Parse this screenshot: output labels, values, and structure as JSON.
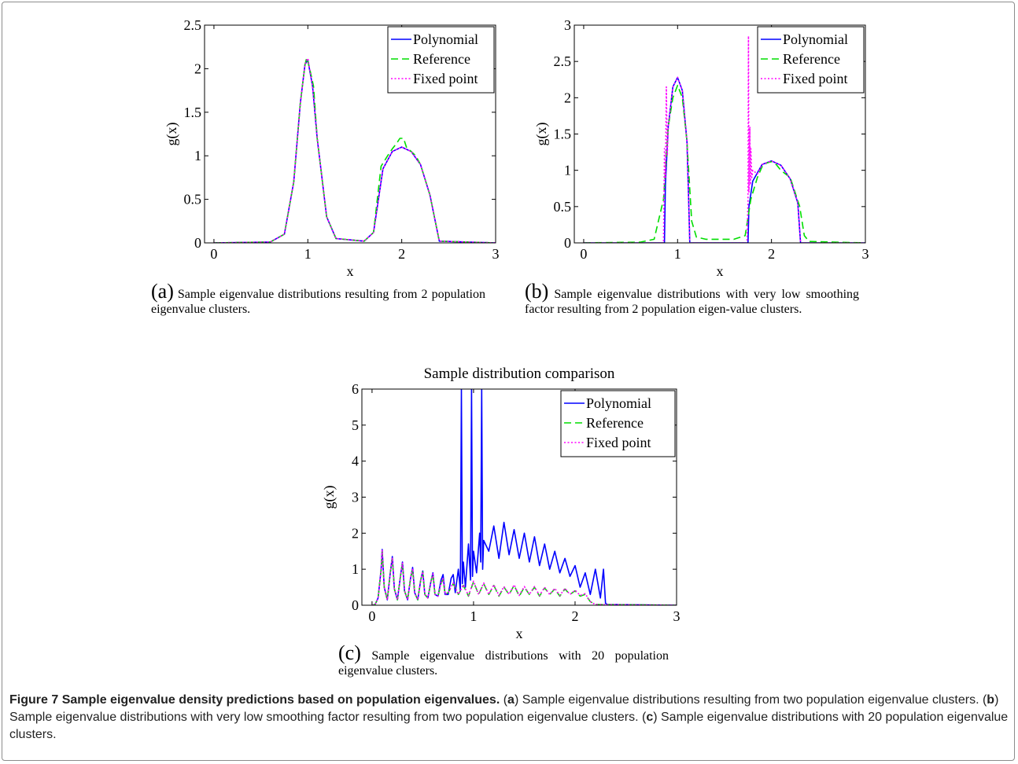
{
  "colors": {
    "polynomial": "#0000ff",
    "reference": "#00dd00",
    "fixed_point": "#ff00ff"
  },
  "caption": {
    "figure_label": "Figure 7",
    "title": "Sample eigenvalue density predictions based on population eigenvalues.",
    "a_label": "a",
    "a_text": "Sample eigenvalue distributions resulting from two population eigenvalue clusters.",
    "b_label": "b",
    "b_text": "Sample eigenvalue distributions with very low smoothing factor resulting from two population eigenvalue clusters.",
    "c_label": "c",
    "c_text": "Sample eigenvalue distributions with 20 population eigenvalue clusters."
  },
  "subcaptions": {
    "a": {
      "label": "(a)",
      "text": "Sample eigenvalue distributions resulting from 2 population eigenvalue clusters."
    },
    "b": {
      "label": "(b)",
      "text": "Sample eigenvalue distributions with very low smoothing factor resulting from 2 population eigen-value clusters."
    },
    "c": {
      "label": "(c)",
      "text": "Sample eigenvalue distributions with 20 population eigenvalue clusters."
    }
  },
  "chart_data": [
    {
      "id": "a",
      "type": "line",
      "title": "",
      "xlabel": "x",
      "ylabel": "g(x)",
      "xlim": [
        -0.1,
        3
      ],
      "ylim": [
        0,
        2.5
      ],
      "xticks": [
        "0",
        "1",
        "2",
        "3"
      ],
      "yticks": [
        "0",
        "0.5",
        "1",
        "1.5",
        "2",
        "2.5"
      ],
      "legend": "top-right",
      "series": [
        {
          "name": "Polynomial",
          "x": [
            0,
            0.6,
            0.75,
            0.85,
            0.92,
            0.97,
            1.0,
            1.05,
            1.1,
            1.2,
            1.3,
            1.6,
            1.7,
            1.8,
            1.9,
            2.0,
            2.1,
            2.2,
            2.3,
            2.4,
            3.0
          ],
          "y": [
            0,
            0.01,
            0.1,
            0.7,
            1.6,
            2.05,
            2.1,
            1.8,
            1.2,
            0.3,
            0.05,
            0.02,
            0.12,
            0.85,
            1.05,
            1.1,
            1.05,
            0.9,
            0.55,
            0.02,
            0
          ]
        },
        {
          "name": "Reference",
          "x": [
            0,
            0.6,
            0.75,
            0.85,
            0.92,
            0.97,
            0.99,
            1.03,
            1.06,
            1.1,
            1.2,
            1.3,
            1.6,
            1.7,
            1.78,
            1.85,
            1.9,
            1.95,
            1.98,
            2.02,
            2.05,
            2.1,
            2.15,
            2.2,
            2.3,
            2.4,
            3.0
          ],
          "y": [
            0,
            0.01,
            0.1,
            0.7,
            1.6,
            2.05,
            2.13,
            1.95,
            1.8,
            1.2,
            0.3,
            0.05,
            0.02,
            0.12,
            0.88,
            1.0,
            1.08,
            1.15,
            1.2,
            1.2,
            1.1,
            1.05,
            1.0,
            0.9,
            0.55,
            0.02,
            0
          ]
        },
        {
          "name": "Fixed point",
          "x": [
            0,
            0.6,
            0.75,
            0.85,
            0.92,
            0.97,
            1.0,
            1.05,
            1.1,
            1.2,
            1.3,
            1.6,
            1.7,
            1.8,
            1.9,
            2.0,
            2.1,
            2.2,
            2.3,
            2.4,
            3.0
          ],
          "y": [
            0,
            0.01,
            0.1,
            0.7,
            1.6,
            2.05,
            2.12,
            1.8,
            1.2,
            0.3,
            0.05,
            0.02,
            0.12,
            0.85,
            1.05,
            1.1,
            1.05,
            0.9,
            0.55,
            0.02,
            0
          ]
        }
      ]
    },
    {
      "id": "b",
      "type": "line",
      "title": "",
      "xlabel": "x",
      "ylabel": "g(x)",
      "xlim": [
        -0.1,
        3
      ],
      "ylim": [
        0,
        3
      ],
      "xticks": [
        "0",
        "1",
        "2",
        "3"
      ],
      "yticks": [
        "0",
        "0.5",
        "1",
        "1.5",
        "2",
        "2.5",
        "3"
      ],
      "legend": "top-right",
      "series": [
        {
          "name": "Polynomial",
          "x": [
            0,
            0.86,
            0.87,
            0.9,
            0.95,
            1.0,
            1.05,
            1.1,
            1.12,
            1.13,
            1.75,
            1.76,
            1.8,
            1.9,
            2.0,
            2.1,
            2.2,
            2.28,
            2.31,
            3.0
          ],
          "y": [
            0,
            0,
            0.8,
            1.6,
            2.15,
            2.28,
            2.1,
            1.4,
            0.5,
            0,
            0,
            0.5,
            0.85,
            1.08,
            1.13,
            1.07,
            0.88,
            0.55,
            0,
            0
          ]
        },
        {
          "name": "Reference",
          "x": [
            0,
            0.6,
            0.75,
            0.85,
            0.9,
            0.95,
            1.0,
            1.05,
            1.1,
            1.15,
            1.2,
            1.3,
            1.6,
            1.72,
            1.78,
            1.85,
            1.9,
            1.95,
            2.0,
            2.05,
            2.1,
            2.2,
            2.3,
            2.35,
            2.4,
            3.0
          ],
          "y": [
            0,
            0.01,
            0.05,
            0.6,
            1.6,
            2.0,
            2.17,
            2.0,
            1.4,
            0.3,
            0.08,
            0.05,
            0.05,
            0.1,
            0.6,
            0.9,
            1.05,
            1.1,
            1.12,
            1.08,
            1.0,
            0.9,
            0.5,
            0.1,
            0.02,
            0
          ]
        },
        {
          "name": "Fixed point",
          "x": [
            0,
            0.85,
            0.86,
            0.87,
            0.88,
            0.89,
            0.9,
            0.95,
            1.0,
            1.05,
            1.1,
            1.12,
            1.13,
            1.74,
            1.75,
            1.755,
            1.76,
            1.77,
            1.775,
            1.78,
            1.79,
            1.8,
            1.85,
            1.9,
            2.0,
            2.1,
            2.2,
            2.28,
            2.31,
            3.0
          ],
          "y": [
            0,
            0,
            1.3,
            0.9,
            2.15,
            1.2,
            1.6,
            2.15,
            2.28,
            2.1,
            1.4,
            0.5,
            0,
            0,
            0.6,
            2.85,
            0.7,
            1.6,
            0.8,
            1.3,
            0.9,
            1.0,
            0.95,
            1.08,
            1.13,
            1.07,
            0.88,
            0.55,
            0,
            0
          ]
        }
      ]
    },
    {
      "id": "c",
      "type": "line",
      "title": "Sample distribution comparison",
      "xlabel": "x",
      "ylabel": "g(x)",
      "xlim": [
        -0.1,
        3
      ],
      "ylim": [
        0,
        6
      ],
      "xticks": [
        "0",
        "1",
        "2",
        "3"
      ],
      "yticks": [
        "0",
        "1",
        "2",
        "3",
        "4",
        "5",
        "6"
      ],
      "legend": "top-right",
      "series": [
        {
          "name": "Polynomial",
          "x": [
            0,
            0.03,
            0.06,
            0.09,
            0.1,
            0.12,
            0.15,
            0.18,
            0.2,
            0.22,
            0.25,
            0.28,
            0.3,
            0.32,
            0.35,
            0.38,
            0.4,
            0.42,
            0.45,
            0.48,
            0.5,
            0.52,
            0.55,
            0.58,
            0.6,
            0.62,
            0.65,
            0.68,
            0.7,
            0.72,
            0.75,
            0.78,
            0.8,
            0.82,
            0.85,
            0.87,
            0.88,
            0.89,
            0.9,
            0.92,
            0.95,
            0.97,
            0.98,
            0.99,
            1.0,
            1.03,
            1.06,
            1.07,
            1.08,
            1.09,
            1.1,
            1.15,
            1.2,
            1.25,
            1.3,
            1.35,
            1.4,
            1.45,
            1.5,
            1.55,
            1.6,
            1.65,
            1.7,
            1.75,
            1.8,
            1.85,
            1.9,
            1.95,
            2.0,
            2.05,
            2.1,
            2.15,
            2.2,
            2.25,
            2.28,
            2.3,
            2.32,
            3.0
          ],
          "y": [
            0,
            0.02,
            0.2,
            1.0,
            1.55,
            0.5,
            0.15,
            0.9,
            1.35,
            0.45,
            0.15,
            0.8,
            1.2,
            0.4,
            0.15,
            0.75,
            1.05,
            0.35,
            0.15,
            0.7,
            0.95,
            0.3,
            0.2,
            0.65,
            0.9,
            0.3,
            0.25,
            0.7,
            0.85,
            0.3,
            0.3,
            0.75,
            0.85,
            0.35,
            1.0,
            0.4,
            6.0,
            0.6,
            1.2,
            0.5,
            1.7,
            0.7,
            6.0,
            0.8,
            1.5,
            0.9,
            2.0,
            1.2,
            6.0,
            1.0,
            1.8,
            1.5,
            2.2,
            1.3,
            2.3,
            1.4,
            2.1,
            1.3,
            2.0,
            1.2,
            1.9,
            1.1,
            1.7,
            1.0,
            1.5,
            0.9,
            1.3,
            0.8,
            1.1,
            0.5,
            0.9,
            0.3,
            1.0,
            0.2,
            1.0,
            0.05,
            0.02,
            0
          ]
        },
        {
          "name": "Reference",
          "x": [
            0,
            0.03,
            0.06,
            0.09,
            0.1,
            0.12,
            0.15,
            0.18,
            0.2,
            0.22,
            0.25,
            0.28,
            0.3,
            0.32,
            0.35,
            0.38,
            0.4,
            0.42,
            0.45,
            0.48,
            0.5,
            0.52,
            0.55,
            0.58,
            0.6,
            0.62,
            0.65,
            0.68,
            0.7,
            0.72,
            0.75,
            0.8,
            0.85,
            0.9,
            0.95,
            1.0,
            1.05,
            1.1,
            1.15,
            1.2,
            1.25,
            1.3,
            1.35,
            1.4,
            1.45,
            1.5,
            1.55,
            1.6,
            1.65,
            1.7,
            1.75,
            1.8,
            1.85,
            1.9,
            1.95,
            2.0,
            2.05,
            2.1,
            2.15,
            2.2,
            3.0
          ],
          "y": [
            0,
            0.02,
            0.2,
            1.0,
            1.5,
            0.5,
            0.15,
            0.9,
            1.3,
            0.45,
            0.15,
            0.8,
            1.15,
            0.4,
            0.15,
            0.75,
            1.0,
            0.35,
            0.15,
            0.7,
            0.92,
            0.3,
            0.2,
            0.65,
            0.85,
            0.3,
            0.25,
            0.6,
            0.72,
            0.3,
            0.35,
            0.6,
            0.3,
            0.55,
            0.25,
            0.65,
            0.3,
            0.6,
            0.3,
            0.55,
            0.25,
            0.5,
            0.3,
            0.55,
            0.25,
            0.5,
            0.3,
            0.5,
            0.25,
            0.48,
            0.3,
            0.45,
            0.25,
            0.45,
            0.3,
            0.4,
            0.25,
            0.3,
            0.1,
            0.02,
            0
          ]
        },
        {
          "name": "Fixed point",
          "x": [
            0,
            0.03,
            0.06,
            0.09,
            0.1,
            0.12,
            0.15,
            0.18,
            0.2,
            0.22,
            0.25,
            0.28,
            0.3,
            0.32,
            0.35,
            0.38,
            0.4,
            0.42,
            0.45,
            0.48,
            0.5,
            0.52,
            0.55,
            0.58,
            0.6,
            0.62,
            0.65,
            0.68,
            0.7,
            0.72,
            0.75,
            0.8,
            0.85,
            0.9,
            0.95,
            1.0,
            1.05,
            1.1,
            1.15,
            1.2,
            1.25,
            1.3,
            1.35,
            1.4,
            1.45,
            1.5,
            1.55,
            1.6,
            1.65,
            1.7,
            1.75,
            1.8,
            1.85,
            1.9,
            1.95,
            2.0,
            2.05,
            2.1,
            2.15,
            2.2,
            3.0
          ],
          "y": [
            0,
            0.02,
            0.2,
            1.0,
            1.52,
            0.5,
            0.15,
            0.9,
            1.32,
            0.45,
            0.15,
            0.8,
            1.17,
            0.4,
            0.15,
            0.75,
            1.02,
            0.35,
            0.15,
            0.7,
            0.93,
            0.3,
            0.2,
            0.65,
            0.87,
            0.3,
            0.25,
            0.62,
            0.74,
            0.3,
            0.35,
            0.62,
            0.3,
            0.57,
            0.27,
            0.67,
            0.3,
            0.62,
            0.3,
            0.57,
            0.27,
            0.52,
            0.3,
            0.57,
            0.27,
            0.52,
            0.3,
            0.52,
            0.27,
            0.5,
            0.3,
            0.47,
            0.27,
            0.47,
            0.3,
            0.42,
            0.27,
            0.32,
            0.1,
            0.02,
            0
          ]
        }
      ]
    }
  ]
}
